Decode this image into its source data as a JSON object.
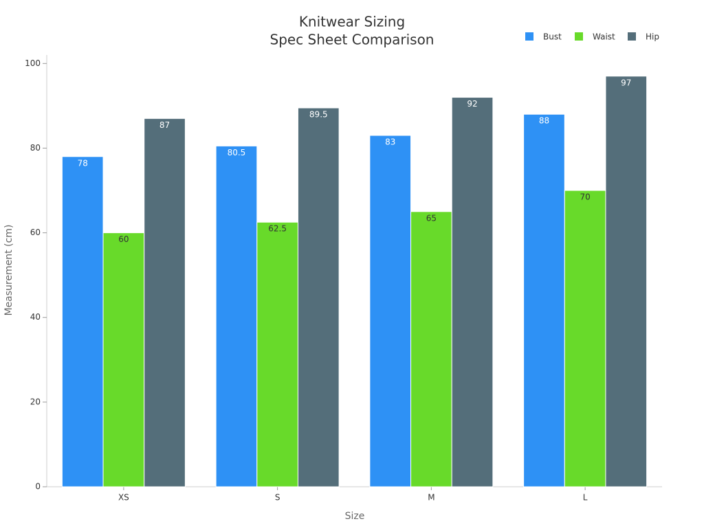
{
  "chart_data": {
    "type": "bar",
    "title": [
      "Knitwear Sizing",
      "Spec Sheet Comparison"
    ],
    "x_label": "Size",
    "y_label": "Measurement (cm)",
    "categories": [
      "XS",
      "S",
      "M",
      "L"
    ],
    "series": [
      {
        "name": "Bust",
        "color": "#2e91f5",
        "values": [
          78,
          80.5,
          83,
          88
        ]
      },
      {
        "name": "Waist",
        "color": "#68da2a",
        "values": [
          60,
          62.5,
          65,
          70
        ]
      },
      {
        "name": "Hip",
        "color": "#546e7a",
        "values": [
          87,
          89.5,
          92,
          97
        ]
      }
    ],
    "ylim": [
      0,
      102
    ],
    "yticks": [
      0,
      20,
      40,
      60,
      80,
      100
    ],
    "legend": "top-right"
  }
}
